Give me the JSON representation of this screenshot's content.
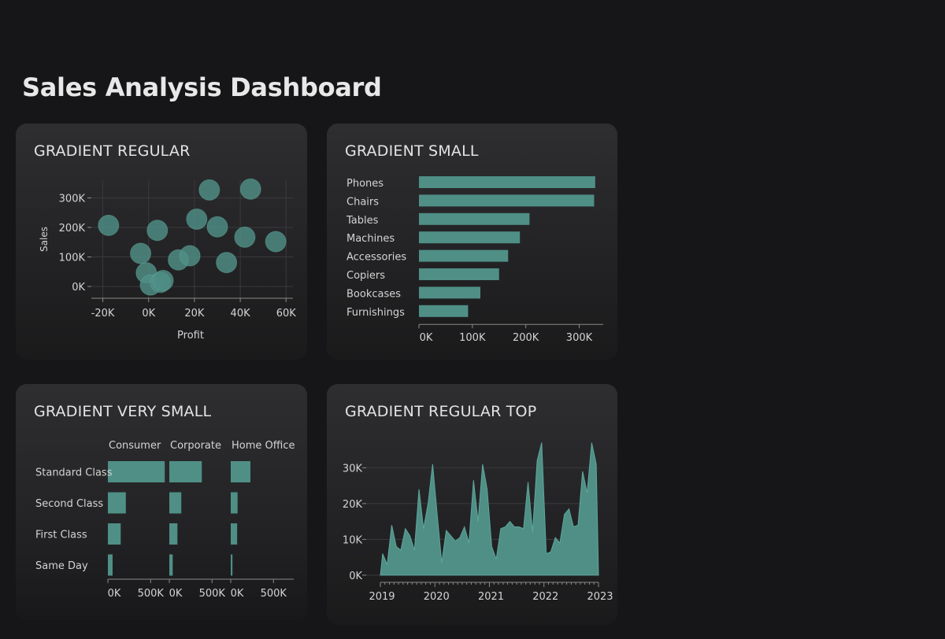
{
  "page": {
    "title": "Sales Analysis Dashboard"
  },
  "colors": {
    "mark": "#4f8f86",
    "grid": "#3a3a3c",
    "axis": "#8a8a8a",
    "text": "#d4d4d4"
  },
  "chart_data": [
    {
      "id": "scatter",
      "type": "scatter",
      "title": "GRADIENT REGULAR",
      "xlabel": "Profit",
      "ylabel": "Sales",
      "xlim": [
        -25000,
        63000
      ],
      "ylim": [
        -40000,
        360000
      ],
      "xticks": [
        -20000,
        0,
        20000,
        40000,
        60000
      ],
      "xtick_labels": [
        "-20K",
        "0K",
        "20K",
        "40K",
        "60K"
      ],
      "yticks": [
        0,
        100000,
        200000,
        300000
      ],
      "ytick_labels": [
        "0K",
        "100K",
        "200K",
        "300K"
      ],
      "points": [
        {
          "x": -17500,
          "y": 207000
        },
        {
          "x": 3800,
          "y": 190000
        },
        {
          "x": -3500,
          "y": 112000
        },
        {
          "x": -1000,
          "y": 46000
        },
        {
          "x": 800,
          "y": 5000
        },
        {
          "x": 5200,
          "y": 14000
        },
        {
          "x": 6300,
          "y": 20000
        },
        {
          "x": 13000,
          "y": 90000
        },
        {
          "x": 18000,
          "y": 104000
        },
        {
          "x": 21000,
          "y": 228000
        },
        {
          "x": 26500,
          "y": 327000
        },
        {
          "x": 30000,
          "y": 202000
        },
        {
          "x": 34000,
          "y": 81000
        },
        {
          "x": 42000,
          "y": 167000
        },
        {
          "x": 44500,
          "y": 330000
        },
        {
          "x": 55500,
          "y": 152000
        }
      ]
    },
    {
      "id": "hbar",
      "type": "bar",
      "orientation": "horizontal",
      "title": "GRADIENT SMALL",
      "categories": [
        "Phones",
        "Chairs",
        "Tables",
        "Machines",
        "Accessories",
        "Copiers",
        "Bookcases",
        "Furnishings"
      ],
      "values": [
        330000,
        328000,
        207000,
        189000,
        167000,
        150000,
        115000,
        92000
      ],
      "xlim": [
        0,
        345000
      ],
      "xticks": [
        0,
        100000,
        200000,
        300000
      ],
      "xtick_labels": [
        "0K",
        "100K",
        "200K",
        "300K"
      ]
    },
    {
      "id": "facet",
      "type": "bar",
      "orientation": "horizontal",
      "title": "GRADIENT VERY SMALL",
      "rows": [
        "Standard Class",
        "Second Class",
        "First Class",
        "Same Day"
      ],
      "columns": [
        "Consumer",
        "Corporate",
        "Home Office"
      ],
      "values": [
        [
          665000,
          380000,
          230000
        ],
        [
          210000,
          140000,
          80000
        ],
        [
          150000,
          95000,
          75000
        ],
        [
          55000,
          40000,
          20000
        ]
      ],
      "xlim": [
        0,
        700000
      ],
      "xticks": [
        0,
        500000
      ],
      "xtick_labels": [
        "0K",
        "500K"
      ]
    },
    {
      "id": "area",
      "type": "area",
      "title": "GRADIENT REGULAR TOP",
      "x_start": "2019-01",
      "x_step": "month",
      "xticks": [
        2019,
        2020,
        2021,
        2022,
        2023
      ],
      "xtick_labels": [
        "2019",
        "2020",
        "2021",
        "2022",
        "2023"
      ],
      "yticks": [
        0,
        10000,
        20000,
        30000
      ],
      "ytick_labels": [
        "0K",
        "10K",
        "20K",
        "30K"
      ],
      "ylim": [
        -2000,
        38000
      ],
      "values": [
        6000,
        3000,
        14000,
        8000,
        7000,
        13000,
        11000,
        7000,
        24000,
        13000,
        20000,
        31000,
        17000,
        3500,
        12500,
        11000,
        9500,
        10500,
        13500,
        9000,
        26500,
        15000,
        31000,
        24000,
        8000,
        4500,
        13000,
        13500,
        15000,
        13500,
        13500,
        13000,
        26000,
        12000,
        32000,
        37000,
        6000,
        6500,
        10500,
        9000,
        17000,
        18500,
        13500,
        14000,
        29000,
        23000,
        37000,
        31000
      ]
    }
  ]
}
